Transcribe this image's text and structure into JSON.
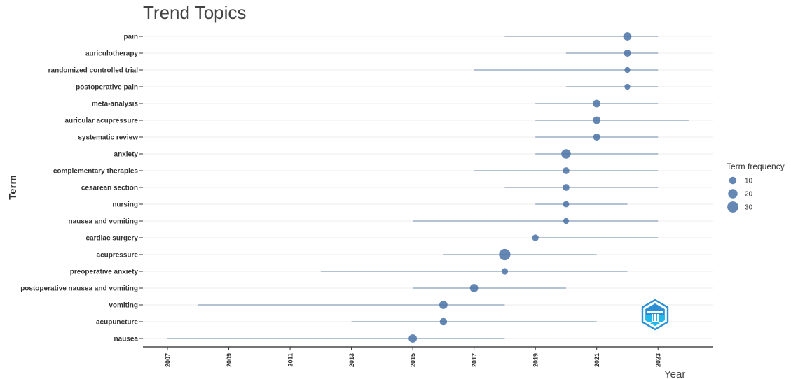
{
  "chart_data": {
    "type": "scatter",
    "title": "Trend Topics",
    "xlabel": "Year",
    "ylabel": "Term",
    "xlim": [
      2006.2,
      2024.8
    ],
    "x_ticks": [
      2007,
      2009,
      2011,
      2013,
      2015,
      2017,
      2019,
      2021,
      2023
    ],
    "grid": true,
    "legend": {
      "title": "Term frequency",
      "placement": "right",
      "sizes": [
        10,
        20,
        30
      ]
    },
    "terms": [
      {
        "term": "pain",
        "q1": 2018,
        "median": 2022,
        "q3": 2023,
        "freq": 14
      },
      {
        "term": "auriculotherapy",
        "q1": 2020,
        "median": 2022,
        "q3": 2023,
        "freq": 9
      },
      {
        "term": "randomized controlled trial",
        "q1": 2017,
        "median": 2022,
        "q3": 2023,
        "freq": 5
      },
      {
        "term": "postoperative pain",
        "q1": 2020,
        "median": 2022,
        "q3": 2023,
        "freq": 5
      },
      {
        "term": "meta-analysis",
        "q1": 2019,
        "median": 2021,
        "q3": 2023,
        "freq": 11
      },
      {
        "term": "auricular acupressure",
        "q1": 2019,
        "median": 2021,
        "q3": 2024,
        "freq": 11
      },
      {
        "term": "systematic review",
        "q1": 2019,
        "median": 2021,
        "q3": 2023,
        "freq": 9
      },
      {
        "term": "anxiety",
        "q1": 2019,
        "median": 2020,
        "q3": 2023,
        "freq": 20
      },
      {
        "term": "complementary therapies",
        "q1": 2017,
        "median": 2020,
        "q3": 2023,
        "freq": 8
      },
      {
        "term": "cesarean section",
        "q1": 2018,
        "median": 2020,
        "q3": 2023,
        "freq": 8
      },
      {
        "term": "nursing",
        "q1": 2019,
        "median": 2020,
        "q3": 2022,
        "freq": 6
      },
      {
        "term": "nausea and vomiting",
        "q1": 2015,
        "median": 2020,
        "q3": 2023,
        "freq": 5
      },
      {
        "term": "cardiac surgery",
        "q1": 2019,
        "median": 2019,
        "q3": 2023,
        "freq": 7
      },
      {
        "term": "acupressure",
        "q1": 2016,
        "median": 2018,
        "q3": 2021,
        "freq": 32
      },
      {
        "term": "preoperative anxiety",
        "q1": 2012,
        "median": 2018,
        "q3": 2022,
        "freq": 7
      },
      {
        "term": "postoperative nausea and vomiting",
        "q1": 2015,
        "median": 2017,
        "q3": 2020,
        "freq": 14
      },
      {
        "term": "vomiting",
        "q1": 2008,
        "median": 2016,
        "q3": 2018,
        "freq": 14
      },
      {
        "term": "acupuncture",
        "q1": 2013,
        "median": 2016,
        "q3": 2021,
        "freq": 10
      },
      {
        "term": "nausea",
        "q1": 2007,
        "median": 2015,
        "q3": 2018,
        "freq": 14
      }
    ],
    "colors": {
      "point": "#4f76a8",
      "segment": "#a9b9cf",
      "grid": "#eeeeee",
      "axis": "#222222",
      "logo_primary": "#2b8fd6",
      "logo_secondary": "#22b8e8"
    }
  }
}
